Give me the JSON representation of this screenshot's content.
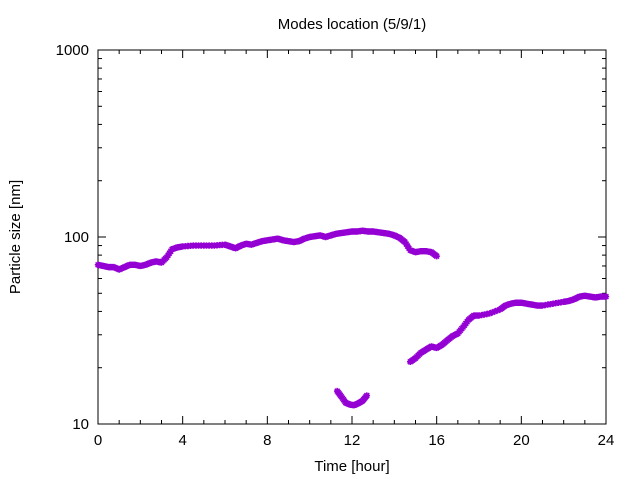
{
  "chart_data": {
    "type": "scatter",
    "title": "Modes location (5/9/1)",
    "xlabel": "Time [hour]",
    "ylabel": "Particle size [nm]",
    "xlim": [
      0,
      24
    ],
    "ylim": [
      10,
      1000
    ],
    "yscale": "log",
    "xticks": [
      0,
      4,
      8,
      12,
      16,
      20,
      24
    ],
    "xtick_labels": [
      "0",
      "4",
      "8",
      "12",
      "16",
      "20",
      "24"
    ],
    "yticks": [
      10,
      100,
      1000
    ],
    "ytick_labels": [
      "10",
      "100",
      "1000"
    ],
    "grid": false,
    "legend": false,
    "marker_color": "#9400d3",
    "series": [
      {
        "x": [
          0,
          0.25,
          0.5,
          0.75,
          1,
          1.25,
          1.5,
          1.75,
          2,
          2.25,
          2.5,
          2.75,
          3,
          3.25,
          3.5,
          3.75,
          4,
          4.5,
          5,
          5.5,
          6,
          6.25,
          6.5,
          6.75,
          7,
          7.25,
          7.5,
          7.75,
          8,
          8.25,
          8.5,
          8.75,
          9,
          9.25,
          9.5,
          9.75,
          10,
          10.25,
          10.5,
          10.75,
          11,
          11.25,
          11.5,
          11.75,
          12,
          12.25,
          12.5,
          12.75,
          13,
          13.25,
          13.5,
          13.75,
          14,
          14.25,
          14.5,
          14.75,
          15,
          15.25,
          15.5,
          15.75,
          16
        ],
        "y": [
          71,
          70,
          69,
          69,
          67,
          69,
          71,
          71,
          70,
          71,
          73,
          74,
          73,
          78,
          86,
          88,
          89,
          90,
          90,
          90,
          91,
          89,
          87,
          90,
          92,
          91,
          93,
          95,
          96,
          97,
          98,
          96,
          95,
          94,
          95,
          98,
          100,
          101,
          102,
          100,
          102,
          104,
          105,
          106,
          107,
          107,
          108,
          107,
          107,
          106,
          105,
          104,
          102,
          99,
          94,
          85,
          83,
          84,
          84,
          83,
          79
        ]
      },
      {
        "x": [
          11.3,
          11.5,
          11.7,
          11.9,
          12.1,
          12.3,
          12.5,
          12.7
        ],
        "y": [
          15,
          14,
          13,
          12.7,
          12.6,
          12.9,
          13.3,
          14.2
        ]
      },
      {
        "x": [
          14.75,
          15,
          15.25,
          15.5,
          15.75,
          16,
          16.25,
          16.5,
          16.75,
          17,
          17.25,
          17.5,
          17.75,
          18,
          18.5,
          19,
          19.25,
          19.5,
          19.75,
          20,
          20.25,
          20.5,
          20.75,
          21,
          21.5,
          22,
          22.25,
          22.5,
          22.75,
          23,
          23.25,
          23.5,
          23.75,
          24
        ],
        "y": [
          21.5,
          22.5,
          24,
          25,
          26,
          25.5,
          26.5,
          28,
          29.5,
          30.5,
          33,
          36,
          38,
          38,
          39,
          41,
          43,
          44,
          44.5,
          44.5,
          44,
          43.5,
          43,
          43,
          44,
          45,
          45.5,
          46.5,
          48,
          48.5,
          48,
          47.5,
          48,
          48
        ]
      }
    ]
  }
}
